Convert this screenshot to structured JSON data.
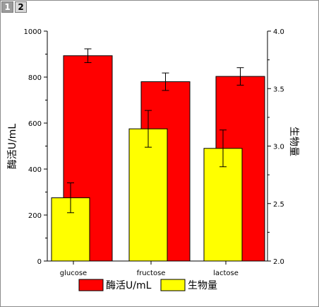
{
  "tabs": [
    {
      "label": "1",
      "active": false
    },
    {
      "label": "2",
      "active": true
    }
  ],
  "chart_data": {
    "type": "bar",
    "categories": [
      "glucose",
      "fructose",
      "lactose"
    ],
    "left_axis": {
      "label": "酶活U/mL",
      "ylim": [
        0,
        1000
      ],
      "ticks": [
        "0",
        "200",
        "400",
        "600",
        "800",
        "1000"
      ]
    },
    "right_axis": {
      "label": "生物量",
      "ylim": [
        2.0,
        4.0
      ],
      "ticks": [
        "2.0",
        "2.5",
        "3.0",
        "3.5",
        "4.0"
      ]
    },
    "series": [
      {
        "name": "酶活U/mL",
        "axis": "left",
        "color": "#ff0000",
        "values": [
          893,
          780,
          803
        ],
        "errors": [
          30,
          38,
          38
        ]
      },
      {
        "name": "生物量",
        "axis": "right",
        "color": "#ffff00",
        "values": [
          2.55,
          3.15,
          2.98
        ],
        "errors": [
          0.13,
          0.16,
          0.16
        ]
      }
    ],
    "legend": {
      "placement": "bottom",
      "items": [
        "酶活U/mL",
        "生物量"
      ]
    },
    "grid": false
  }
}
